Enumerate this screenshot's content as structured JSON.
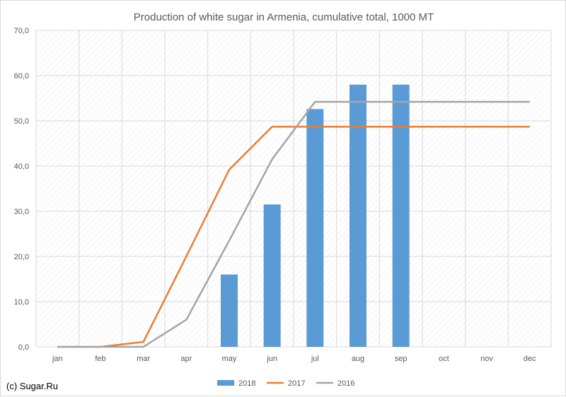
{
  "copyright": "(c) Sugar.Ru",
  "chart_data": {
    "type": "bar+line",
    "title": "Production of white sugar in Armenia, cumulative total, 1000 MT",
    "categories": [
      "jan",
      "feb",
      "mar",
      "apr",
      "may",
      "jun",
      "jul",
      "aug",
      "sep",
      "oct",
      "nov",
      "dec"
    ],
    "y_ticks": [
      "0,0",
      "10,0",
      "20,0",
      "30,0",
      "40,0",
      "50,0",
      "60,0",
      "70,0"
    ],
    "ylim": [
      0,
      70
    ],
    "grid": true,
    "legend_position": "bottom",
    "series": [
      {
        "name": "2018",
        "kind": "bar",
        "color": "#5b9bd5",
        "values": [
          null,
          null,
          null,
          null,
          16.0,
          31.5,
          52.6,
          58.0,
          58.0,
          null,
          null,
          null
        ]
      },
      {
        "name": "2017",
        "kind": "line",
        "color": "#ed7d31",
        "values": [
          0,
          0,
          1.1,
          20.0,
          39.2,
          48.7,
          48.7,
          48.7,
          48.7,
          48.7,
          48.7,
          48.7
        ]
      },
      {
        "name": "2016",
        "kind": "line",
        "color": "#a5a5a5",
        "values": [
          0,
          0,
          0,
          6.0,
          23.5,
          41.5,
          54.2,
          54.2,
          54.2,
          54.2,
          54.2,
          54.2
        ]
      }
    ]
  }
}
